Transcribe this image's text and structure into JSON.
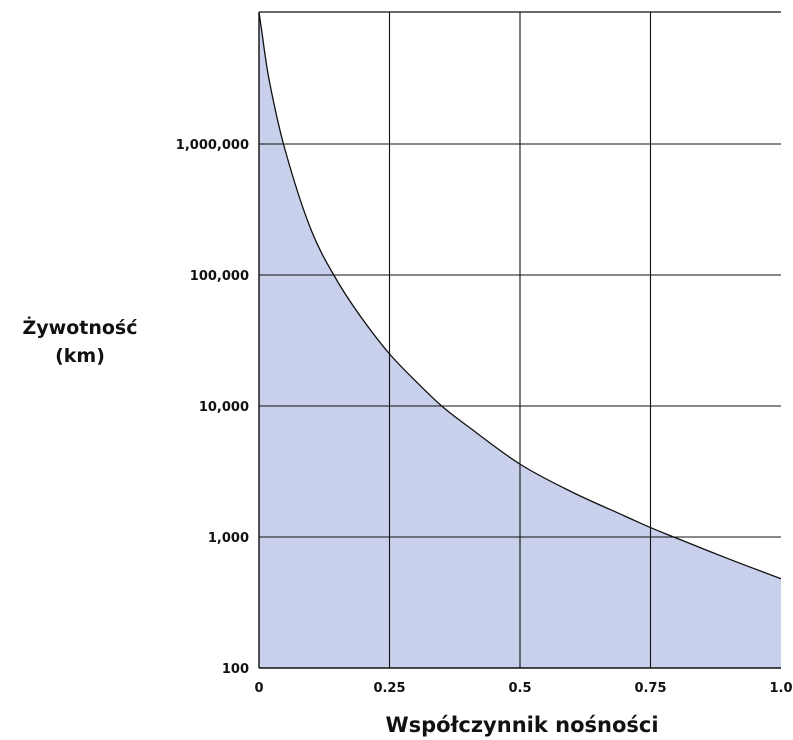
{
  "chart_data": {
    "type": "area",
    "xlabel": "Współczynnik nośności",
    "ylabel_lines": [
      "Żywotność",
      "(km)"
    ],
    "x_scale": "linear",
    "y_scale": "log",
    "xlim": [
      0,
      1.0
    ],
    "ylim": [
      100,
      100000000
    ],
    "x_ticks": [
      {
        "value": 0,
        "label": "0"
      },
      {
        "value": 0.25,
        "label": "0.25"
      },
      {
        "value": 0.5,
        "label": "0.5"
      },
      {
        "value": 0.75,
        "label": "0.75"
      },
      {
        "value": 1.0,
        "label": "1.0"
      }
    ],
    "y_ticks": [
      {
        "value": 100,
        "label": "100"
      },
      {
        "value": 1000,
        "label": "1,000"
      },
      {
        "value": 10000,
        "label": "10,000"
      },
      {
        "value": 100000,
        "label": "100,000"
      },
      {
        "value": 1000000,
        "label": "1,000,000"
      }
    ],
    "y_gridlines": [
      1000,
      10000,
      100000,
      1000000,
      10000000
    ],
    "grid": true,
    "series": [
      {
        "x": [
          0.005,
          0.02,
          0.05,
          0.1,
          0.15,
          0.2,
          0.25,
          0.3,
          0.35,
          0.4,
          0.5,
          0.6,
          0.7,
          0.75,
          0.8,
          0.9,
          1.0
        ],
        "y": [
          7400000,
          3000000,
          900000,
          220000,
          90000,
          45000,
          25000,
          15500,
          10000,
          7000,
          3600,
          2200,
          1450,
          1180,
          980,
          680,
          480
        ]
      }
    ],
    "colors": {
      "fill": "#c8d0ec",
      "line": "#111111",
      "grid": "#111111"
    }
  }
}
